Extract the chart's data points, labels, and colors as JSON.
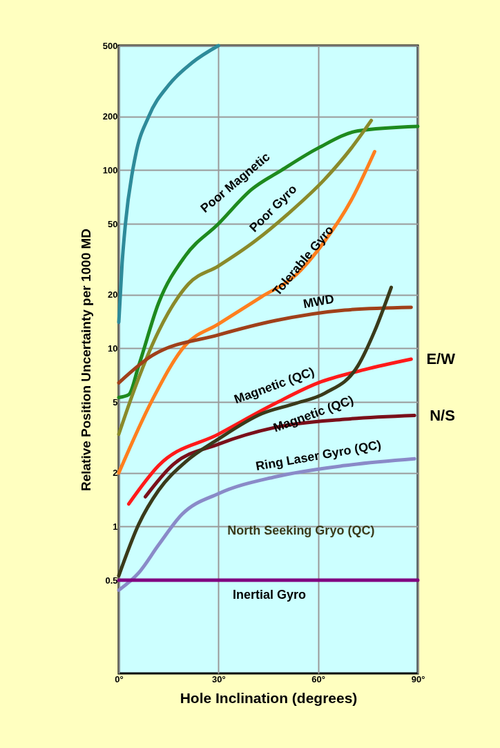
{
  "chart_data": {
    "type": "line",
    "xlabel": "Hole Inclination (degrees)",
    "ylabel": "Relative Position Uncertainty per 1000 MD",
    "log": "y",
    "grid": true,
    "xlim": [
      0,
      90
    ],
    "xticks": [
      {
        "value": 0,
        "label": "0°"
      },
      {
        "value": 30,
        "label": "30°"
      },
      {
        "value": 60,
        "label": "60°"
      },
      {
        "value": 90,
        "label": "90°"
      }
    ],
    "ylim": [
      0.15,
      500
    ],
    "yticks": [
      0.5,
      1,
      2,
      5,
      10,
      20,
      50,
      100,
      200,
      500
    ],
    "series": [
      {
        "color": "#2e8b9a",
        "x": [
          0,
          1,
          2,
          5,
          9,
          15,
          22,
          30
        ],
        "values": [
          14,
          30,
          50,
          120,
          200,
          300,
          400,
          500
        ]
      },
      {
        "name": "Poor Magnetic",
        "color": "#1e8a1e",
        "x": [
          0,
          3,
          6,
          12,
          20,
          30,
          40,
          49,
          60,
          72,
          90
        ],
        "values": [
          5.3,
          5.5,
          8,
          18,
          33,
          50,
          78,
          100,
          133,
          166,
          176
        ]
      },
      {
        "name": "Poor Gyro",
        "color": "#8a8a2a",
        "x": [
          0,
          5,
          12,
          21,
          30,
          41,
          51,
          62,
          70,
          76
        ],
        "values": [
          3.3,
          6.1,
          12.5,
          23,
          29,
          40,
          57,
          89,
          133,
          190
        ]
      },
      {
        "name": "Tolerable Gyro",
        "color": "#ff7f1e",
        "x": [
          0,
          10,
          20,
          30,
          43,
          53,
          62,
          70,
          77
        ],
        "values": [
          2,
          5.1,
          10.4,
          13.7,
          19.5,
          25.5,
          40,
          68,
          127
        ]
      },
      {
        "name": "MWD",
        "color": "#a0401a",
        "x": [
          0,
          10,
          30,
          47,
          68,
          88
        ],
        "values": [
          6.4,
          9.1,
          11.9,
          14.3,
          16.4,
          17
        ]
      },
      {
        "name": "Magnetic (QC)",
        "color": "#ff1a1a",
        "x": [
          3,
          12,
          30,
          47,
          60,
          74,
          88
        ],
        "values": [
          1.34,
          2.2,
          3.3,
          4.9,
          6.4,
          7.6,
          8.7
        ]
      },
      {
        "name": "Magnetic (QC)",
        "color": "#7a0f1a",
        "x": [
          8,
          16,
          30,
          47,
          68,
          89
        ],
        "values": [
          1.47,
          2.2,
          2.9,
          3.6,
          4,
          4.2
        ]
      },
      {
        "name": "Ring Laser Gyro (QC)",
        "color": "#8a8ac8",
        "x": [
          0,
          6,
          12,
          19,
          30,
          47,
          68,
          89
        ],
        "values": [
          0.44,
          0.55,
          0.79,
          1.17,
          1.53,
          1.9,
          2.2,
          2.4
        ]
      },
      {
        "name": "North Seeking Gryo (QC)",
        "color": "#3a3a1a",
        "x": [
          0,
          6,
          12,
          20,
          30,
          43,
          53,
          62,
          72,
          77,
          82
        ],
        "values": [
          0.53,
          1.03,
          1.6,
          2.3,
          3.1,
          4.3,
          4.9,
          5.6,
          8,
          12.5,
          22
        ]
      },
      {
        "name": "Inertial Gyro",
        "color": "#800080",
        "x": [
          0,
          90
        ],
        "values": [
          0.5,
          0.5
        ]
      }
    ],
    "annotations": [
      {
        "text": "E/W",
        "x": 88,
        "y": 8.7
      },
      {
        "text": "N/S",
        "x": 89,
        "y": 4.2
      }
    ]
  }
}
